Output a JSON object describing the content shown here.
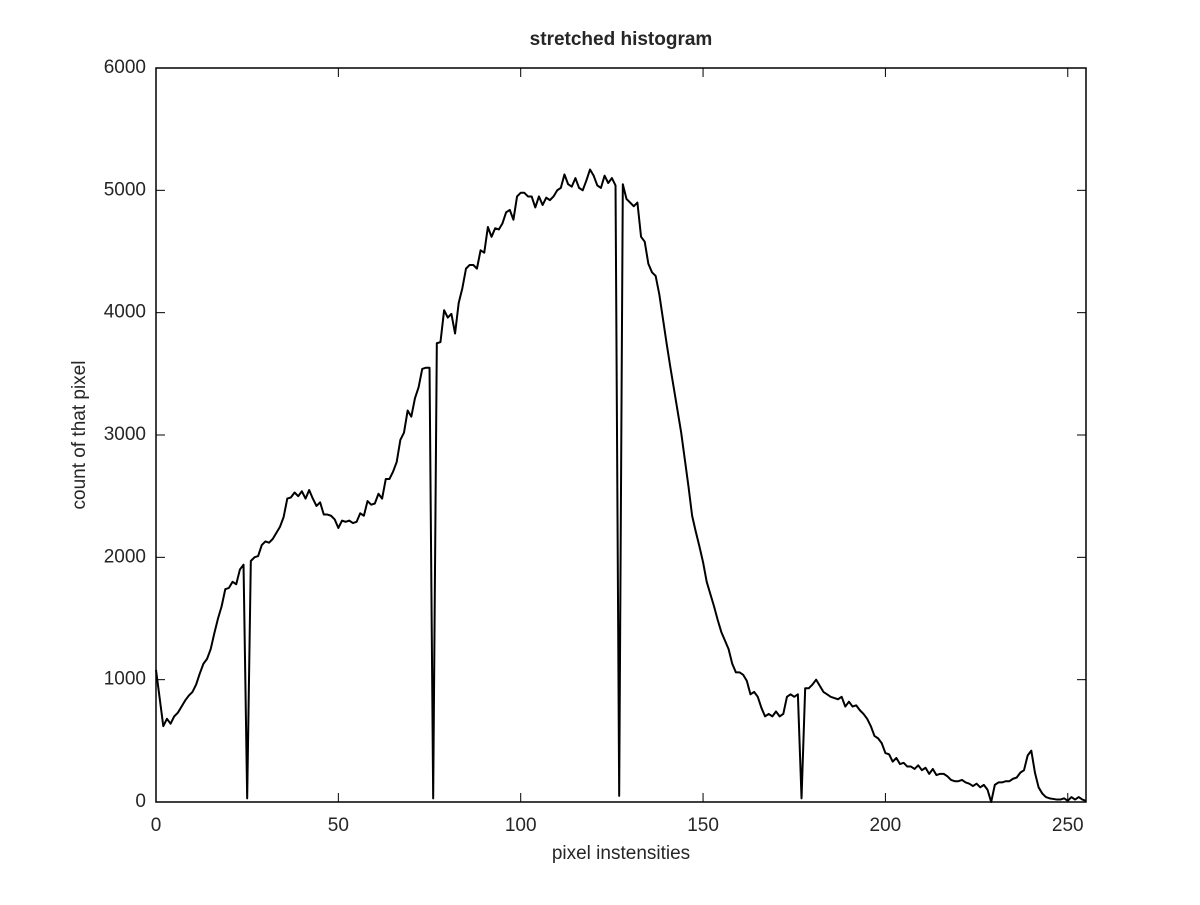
{
  "chart_data": {
    "type": "line",
    "title": "stretched histogram",
    "x_label": "pixel instensities",
    "y_label": "count of that pixel",
    "x": [
      0,
      1,
      2,
      3,
      4,
      5,
      6,
      7,
      8,
      9,
      10,
      11,
      12,
      13,
      14,
      15,
      16,
      17,
      18,
      19,
      20,
      21,
      22,
      23,
      24,
      25,
      26,
      27,
      28,
      29,
      30,
      31,
      32,
      33,
      34,
      35,
      36,
      37,
      38,
      39,
      40,
      41,
      42,
      43,
      44,
      45,
      46,
      47,
      48,
      49,
      50,
      51,
      52,
      53,
      54,
      55,
      56,
      57,
      58,
      59,
      60,
      61,
      62,
      63,
      64,
      65,
      66,
      67,
      68,
      69,
      70,
      71,
      72,
      73,
      74,
      75,
      76,
      77,
      78,
      79,
      80,
      81,
      82,
      83,
      84,
      85,
      86,
      87,
      88,
      89,
      90,
      91,
      92,
      93,
      94,
      95,
      96,
      97,
      98,
      99,
      100,
      101,
      102,
      103,
      104,
      105,
      106,
      107,
      108,
      109,
      110,
      111,
      112,
      113,
      114,
      115,
      116,
      117,
      118,
      119,
      120,
      121,
      122,
      123,
      124,
      125,
      126,
      127,
      128,
      129,
      130,
      131,
      132,
      133,
      134,
      135,
      136,
      137,
      138,
      139,
      140,
      141,
      142,
      143,
      144,
      145,
      146,
      147,
      148,
      149,
      150,
      151,
      152,
      153,
      154,
      155,
      156,
      157,
      158,
      159,
      160,
      161,
      162,
      163,
      164,
      165,
      166,
      167,
      168,
      169,
      170,
      171,
      172,
      173,
      174,
      175,
      176,
      177,
      178,
      179,
      180,
      181,
      182,
      183,
      184,
      185,
      186,
      187,
      188,
      189,
      190,
      191,
      192,
      193,
      194,
      195,
      196,
      197,
      198,
      199,
      200,
      201,
      202,
      203,
      204,
      205,
      206,
      207,
      208,
      209,
      210,
      211,
      212,
      213,
      214,
      215,
      216,
      217,
      218,
      219,
      220,
      221,
      222,
      223,
      224,
      225,
      226,
      227,
      228,
      229,
      230,
      231,
      232,
      233,
      234,
      235,
      236,
      237,
      238,
      239,
      240,
      241,
      242,
      243,
      244,
      245,
      246,
      247,
      248,
      249,
      250,
      251,
      252,
      253,
      254,
      255
    ],
    "series": [
      {
        "color": "#000000",
        "values": [
          1080,
          850,
          620,
          680,
          640,
          700,
          730,
          780,
          830,
          870,
          900,
          960,
          1050,
          1130,
          1170,
          1250,
          1380,
          1500,
          1600,
          1740,
          1750,
          1800,
          1780,
          1900,
          1940,
          30,
          1970,
          2000,
          2010,
          2100,
          2130,
          2120,
          2150,
          2200,
          2250,
          2330,
          2480,
          2490,
          2530,
          2500,
          2540,
          2480,
          2550,
          2480,
          2420,
          2450,
          2350,
          2350,
          2340,
          2310,
          2240,
          2300,
          2290,
          2300,
          2280,
          2290,
          2360,
          2340,
          2460,
          2430,
          2440,
          2520,
          2480,
          2640,
          2640,
          2700,
          2780,
          2960,
          3020,
          3200,
          3150,
          3300,
          3390,
          3540,
          3550,
          3550,
          30,
          3750,
          3760,
          4020,
          3960,
          3990,
          3830,
          4080,
          4200,
          4360,
          4390,
          4390,
          4360,
          4510,
          4490,
          4700,
          4620,
          4690,
          4680,
          4730,
          4820,
          4840,
          4760,
          4950,
          4980,
          4980,
          4950,
          4950,
          4860,
          4950,
          4880,
          4940,
          4920,
          4950,
          5000,
          5020,
          5130,
          5050,
          5030,
          5100,
          5020,
          5000,
          5080,
          5170,
          5120,
          5040,
          5020,
          5120,
          5060,
          5100,
          5040,
          50,
          5050,
          4930,
          4900,
          4870,
          4900,
          4620,
          4580,
          4400,
          4330,
          4300,
          4150,
          3950,
          3750,
          3560,
          3380,
          3200,
          3020,
          2800,
          2580,
          2340,
          2210,
          2090,
          1960,
          1800,
          1700,
          1600,
          1490,
          1390,
          1320,
          1250,
          1130,
          1060,
          1060,
          1040,
          990,
          880,
          900,
          860,
          770,
          700,
          720,
          700,
          740,
          700,
          720,
          860,
          880,
          860,
          880,
          30,
          930,
          930,
          960,
          1000,
          950,
          900,
          880,
          860,
          850,
          840,
          860,
          780,
          820,
          780,
          790,
          750,
          720,
          680,
          620,
          540,
          520,
          480,
          400,
          390,
          330,
          360,
          310,
          320,
          290,
          290,
          270,
          300,
          260,
          280,
          230,
          270,
          220,
          230,
          230,
          210,
          180,
          170,
          170,
          180,
          160,
          150,
          130,
          150,
          120,
          140,
          100,
          0,
          140,
          160,
          160,
          170,
          170,
          190,
          200,
          240,
          260,
          380,
          420,
          240,
          120,
          70,
          40,
          30,
          25,
          20,
          20,
          30,
          10,
          40,
          20,
          40,
          20,
          10
        ]
      }
    ],
    "xlim": [
      0,
      255
    ],
    "ylim": [
      0,
      6000
    ],
    "xticks": [
      0,
      50,
      100,
      150,
      200,
      250
    ],
    "yticks": [
      0,
      1000,
      2000,
      3000,
      4000,
      5000,
      6000
    ]
  }
}
